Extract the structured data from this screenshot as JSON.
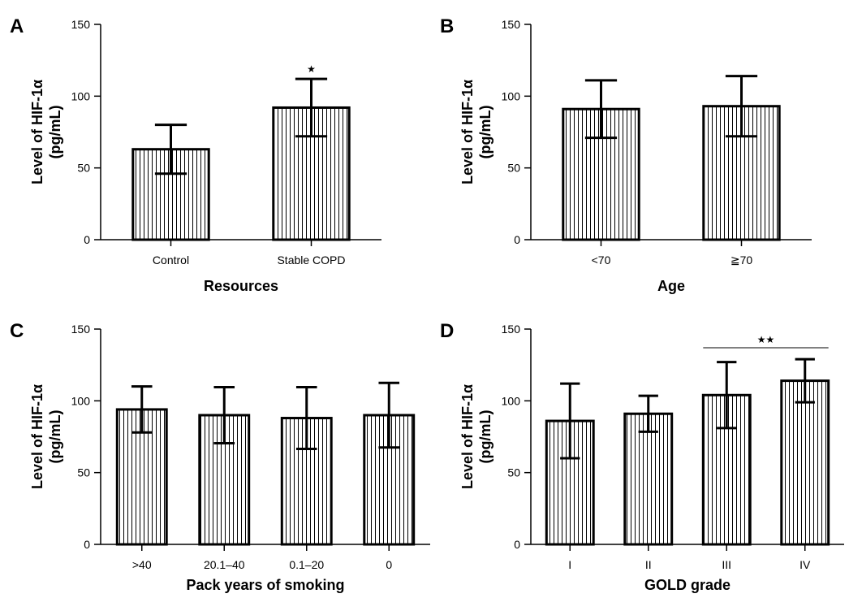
{
  "colors": {
    "bar_fill": "#ffffff",
    "hatch": "#000000",
    "stroke": "#000000"
  },
  "chart_data": [
    {
      "panel": "A",
      "type": "bar",
      "categories": [
        "Control",
        "Stable COPD"
      ],
      "series": [
        {
          "values": [
            63,
            92
          ],
          "error": [
            17,
            20
          ]
        }
      ],
      "xlabel": "Resources",
      "ylabel": [
        "Level of HIF-1α",
        "(pg/mL)"
      ],
      "ylim": [
        0,
        150
      ],
      "yticks": [
        "0",
        "50",
        "100",
        "150"
      ],
      "hatch": "vertical-lines",
      "annotations": [
        {
          "text": "★",
          "category": "Stable COPD"
        }
      ]
    },
    {
      "panel": "B",
      "type": "bar",
      "categories": [
        "<70",
        "≧70"
      ],
      "series": [
        {
          "values": [
            91,
            93
          ],
          "error": [
            20,
            21
          ]
        }
      ],
      "xlabel": "Age",
      "ylabel": [
        "Level of HIF-1α",
        "(pg/mL)"
      ],
      "ylim": [
        0,
        150
      ],
      "yticks": [
        "0",
        "50",
        "100",
        "150"
      ],
      "hatch": "vertical-lines",
      "annotations": []
    },
    {
      "panel": "C",
      "type": "bar",
      "categories": [
        ">40",
        "20.1–40",
        "0.1–20",
        "0"
      ],
      "series": [
        {
          "values": [
            94,
            90,
            88,
            90
          ],
          "error": [
            16,
            19.5,
            21.5,
            22.5
          ]
        }
      ],
      "xlabel": "Pack years of smoking",
      "ylabel": [
        "Level of HIF-1α",
        "(pg/mL)"
      ],
      "ylim": [
        0,
        150
      ],
      "yticks": [
        "0",
        "50",
        "100",
        "150"
      ],
      "hatch": "vertical-lines",
      "annotations": []
    },
    {
      "panel": "D",
      "type": "bar",
      "categories": [
        "I",
        "II",
        "III",
        "IV"
      ],
      "series": [
        {
          "values": [
            86,
            91,
            104,
            114
          ],
          "error": [
            26,
            12.5,
            23,
            15
          ]
        }
      ],
      "xlabel": "GOLD grade",
      "ylabel": [
        "Level of HIF-1α",
        "(pg/mL)"
      ],
      "ylim": [
        0,
        150
      ],
      "yticks": [
        "0",
        "50",
        "100",
        "150"
      ],
      "hatch": "vertical-lines",
      "annotations": [
        {
          "text": "★★",
          "from": "III",
          "to": "IV",
          "y": 137
        }
      ]
    }
  ]
}
